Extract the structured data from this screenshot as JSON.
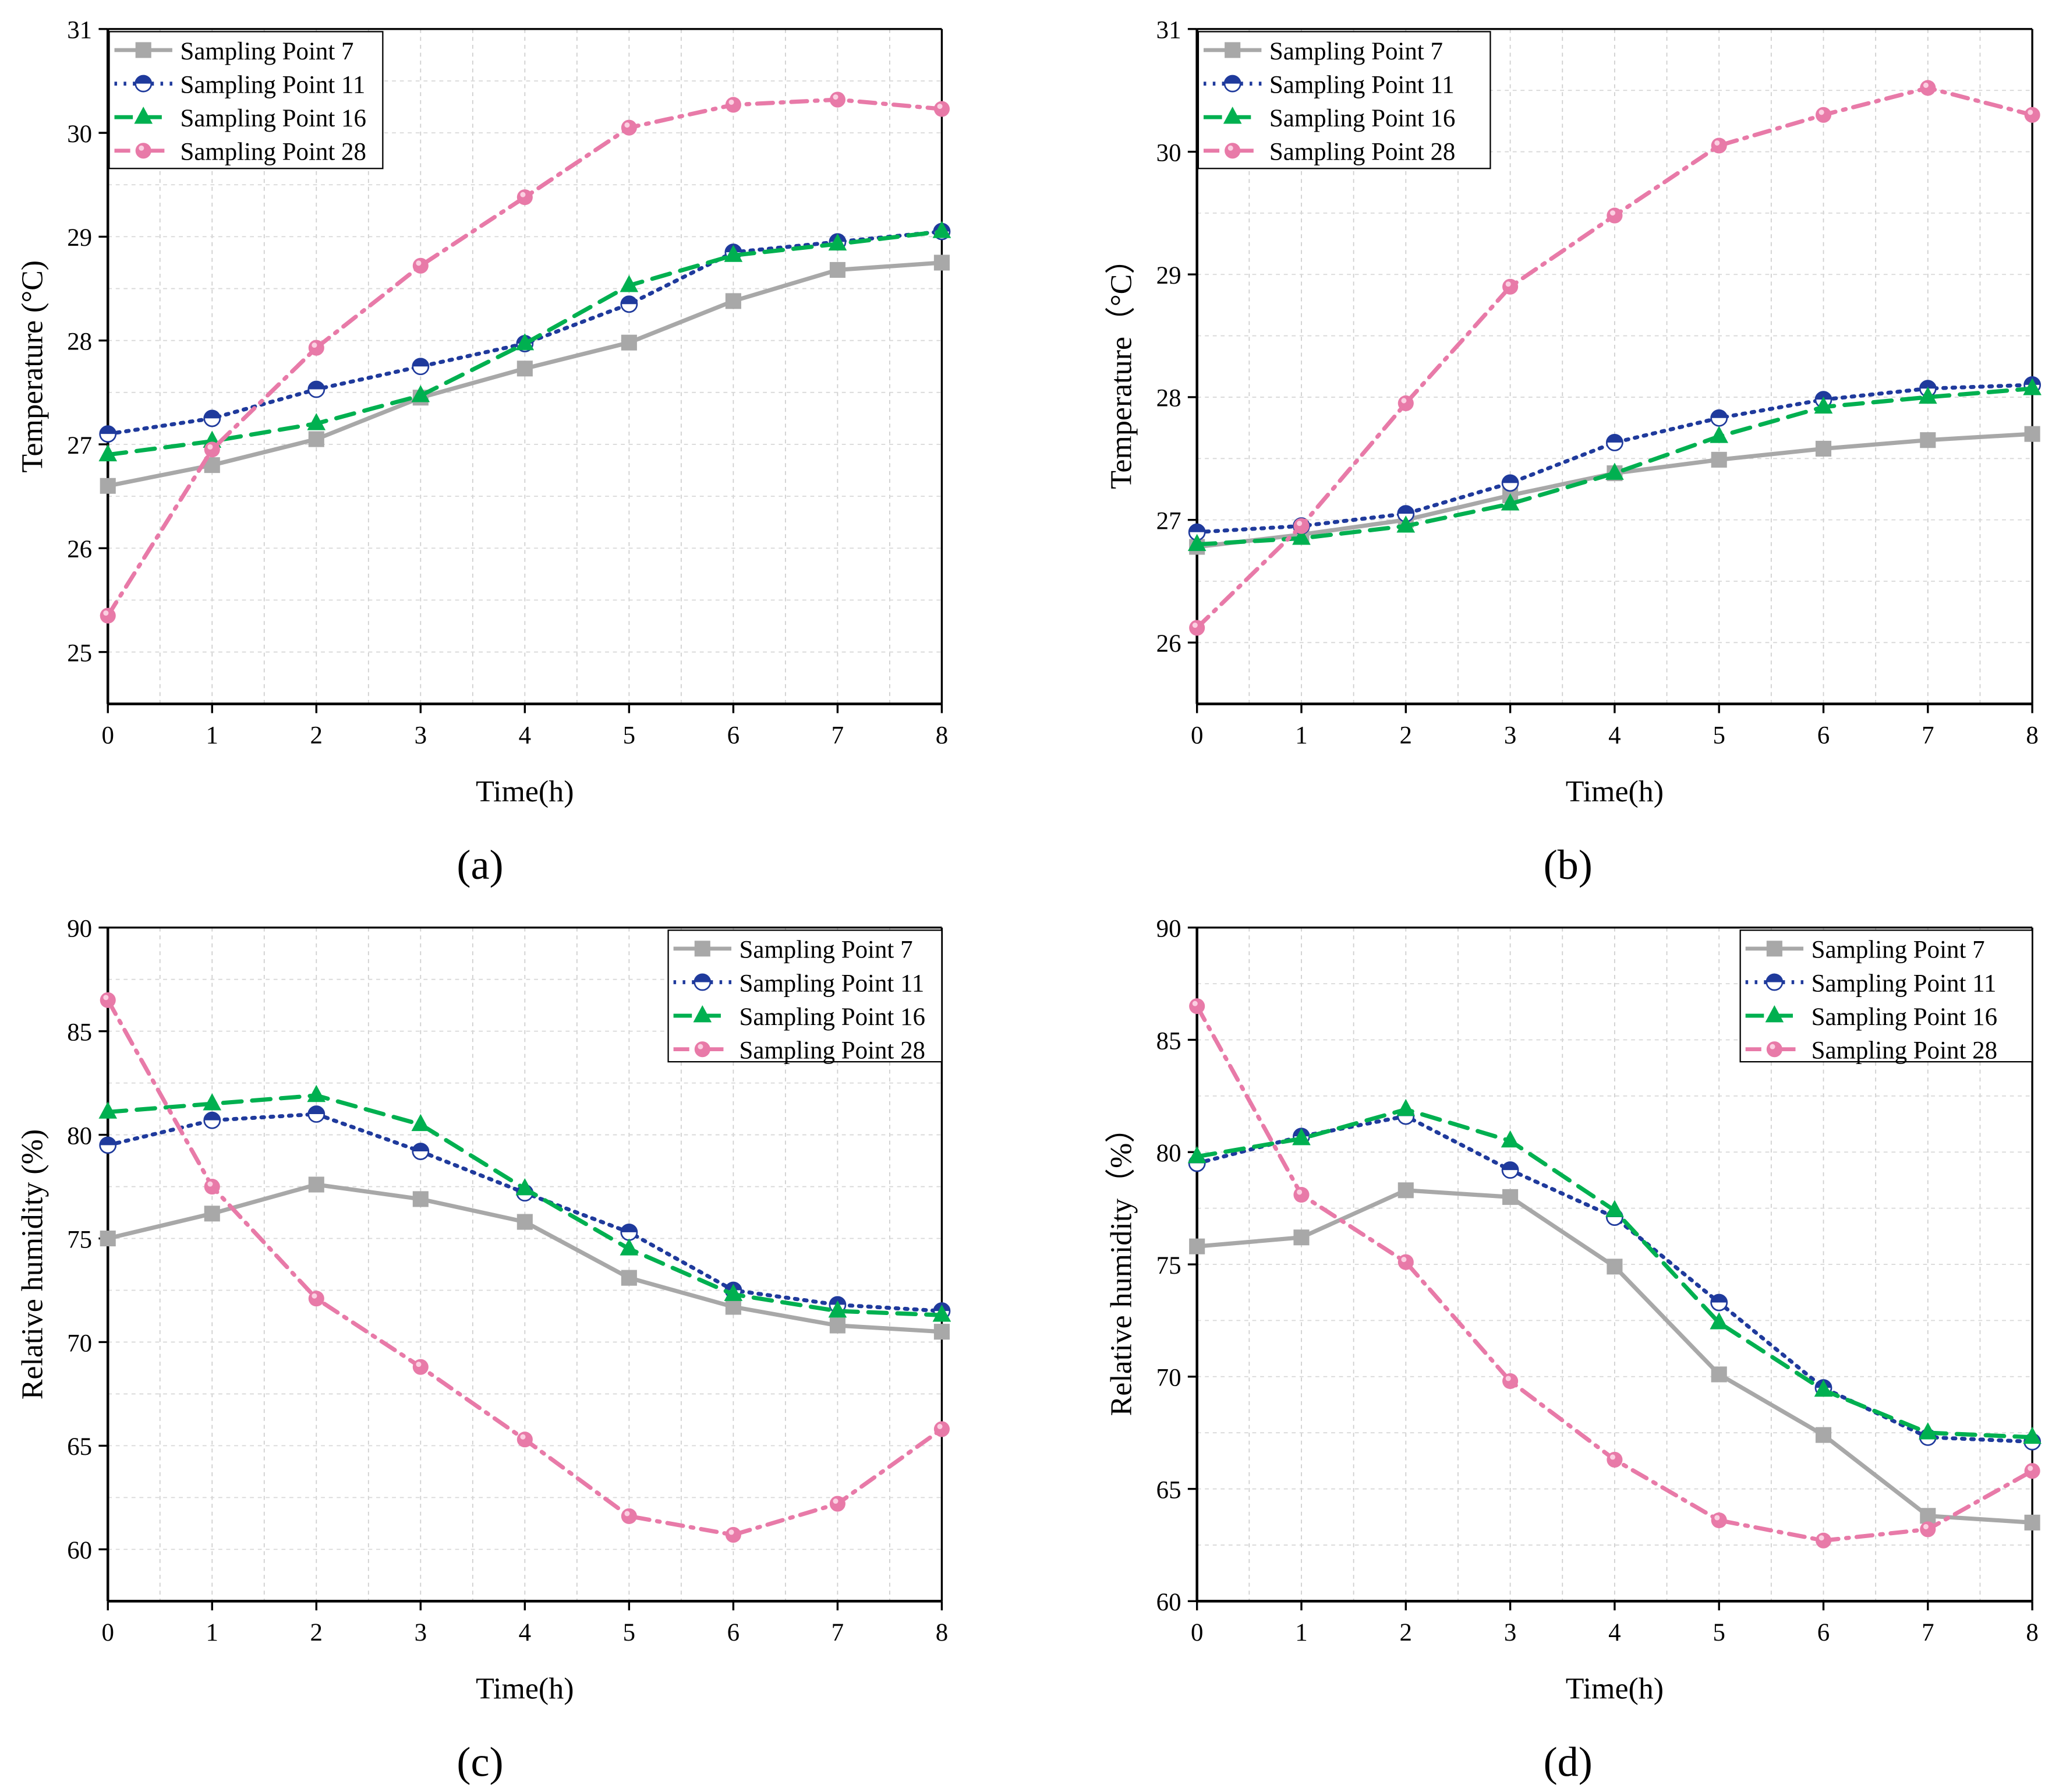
{
  "colors": {
    "sp7": "#a8a8a8",
    "sp11": "#1f3a9c",
    "sp16": "#00b050",
    "sp28": "#e87aa8"
  },
  "chart_data": [
    {
      "type": "line",
      "panel_label": "(a)",
      "xlabel": "Time(h)",
      "ylabel": "Temperature (°C)",
      "x": [
        0,
        1,
        2,
        3,
        4,
        5,
        6,
        7,
        8
      ],
      "xlim": [
        0,
        8
      ],
      "ylim": [
        24.5,
        31
      ],
      "yticks": [
        25,
        26,
        27,
        28,
        29,
        30,
        31
      ],
      "grid": true,
      "legend": "top-left",
      "series": [
        {
          "name": "Sampling Point 7",
          "values": [
            26.6,
            26.8,
            27.05,
            27.45,
            27.73,
            27.98,
            28.38,
            28.68,
            28.75
          ]
        },
        {
          "name": "Sampling Point 11",
          "values": [
            27.1,
            27.25,
            27.53,
            27.75,
            27.97,
            28.35,
            28.85,
            28.95,
            29.05
          ]
        },
        {
          "name": "Sampling Point 16",
          "values": [
            26.9,
            27.03,
            27.2,
            27.47,
            27.97,
            28.53,
            28.82,
            28.93,
            29.05
          ]
        },
        {
          "name": "Sampling Point 28",
          "values": [
            25.35,
            26.95,
            27.93,
            28.72,
            29.38,
            30.05,
            30.27,
            30.32,
            30.23
          ]
        }
      ]
    },
    {
      "type": "line",
      "panel_label": "(b)",
      "xlabel": "Time(h)",
      "ylabel": "Temperature（°C）",
      "x": [
        0,
        1,
        2,
        3,
        4,
        5,
        6,
        7,
        8
      ],
      "xlim": [
        0,
        8
      ],
      "ylim": [
        25.5,
        31
      ],
      "yticks": [
        26,
        27,
        28,
        29,
        30,
        31
      ],
      "grid": true,
      "legend": "top-left",
      "series": [
        {
          "name": "Sampling Point 7",
          "values": [
            26.78,
            26.88,
            27.0,
            27.2,
            27.38,
            27.49,
            27.58,
            27.65,
            27.7
          ]
        },
        {
          "name": "Sampling Point 11",
          "values": [
            26.9,
            26.95,
            27.05,
            27.3,
            27.63,
            27.83,
            27.98,
            28.07,
            28.1
          ]
        },
        {
          "name": "Sampling Point 16",
          "values": [
            26.8,
            26.85,
            26.95,
            27.13,
            27.38,
            27.68,
            27.92,
            28.0,
            28.07
          ]
        },
        {
          "name": "Sampling Point 28",
          "values": [
            26.12,
            26.95,
            27.95,
            28.9,
            29.48,
            30.05,
            30.3,
            30.52,
            30.3
          ]
        }
      ]
    },
    {
      "type": "line",
      "panel_label": "(c)",
      "xlabel": "Time(h)",
      "ylabel": "Relative humidity (%)",
      "x": [
        0,
        1,
        2,
        3,
        4,
        5,
        6,
        7,
        8
      ],
      "xlim": [
        0,
        8
      ],
      "ylim": [
        57.5,
        90
      ],
      "yticks": [
        60,
        65,
        70,
        75,
        80,
        85,
        90
      ],
      "grid": true,
      "legend": "top-right",
      "series": [
        {
          "name": "Sampling Point 7",
          "values": [
            75.0,
            76.2,
            77.6,
            76.9,
            75.8,
            73.1,
            71.7,
            70.8,
            70.5
          ]
        },
        {
          "name": "Sampling Point 11",
          "values": [
            79.5,
            80.7,
            81.0,
            79.2,
            77.2,
            75.3,
            72.5,
            71.8,
            71.5
          ]
        },
        {
          "name": "Sampling Point 16",
          "values": [
            81.1,
            81.5,
            81.9,
            80.5,
            77.4,
            74.5,
            72.3,
            71.5,
            71.3
          ]
        },
        {
          "name": "Sampling Point 28",
          "values": [
            86.5,
            77.5,
            72.1,
            68.8,
            65.3,
            61.6,
            60.7,
            62.2,
            65.8
          ]
        }
      ]
    },
    {
      "type": "line",
      "panel_label": "(d)",
      "xlabel": "Time(h)",
      "ylabel": "Relative humidity（%）",
      "x": [
        0,
        1,
        2,
        3,
        4,
        5,
        6,
        7,
        8
      ],
      "xlim": [
        0,
        8
      ],
      "ylim": [
        60,
        90
      ],
      "yticks": [
        60,
        65,
        70,
        75,
        80,
        85,
        90
      ],
      "grid": true,
      "legend": "top-right",
      "series": [
        {
          "name": "Sampling Point 7",
          "values": [
            75.8,
            76.2,
            78.3,
            78.0,
            74.9,
            70.1,
            67.4,
            63.8,
            63.5
          ]
        },
        {
          "name": "Sampling Point 11",
          "values": [
            79.5,
            80.7,
            81.6,
            79.2,
            77.1,
            73.3,
            69.5,
            67.3,
            67.1
          ]
        },
        {
          "name": "Sampling Point 16",
          "values": [
            79.8,
            80.6,
            81.9,
            80.5,
            77.4,
            72.4,
            69.4,
            67.5,
            67.3
          ]
        },
        {
          "name": "Sampling Point 28",
          "values": [
            86.5,
            78.1,
            75.1,
            69.8,
            66.3,
            63.6,
            62.7,
            63.2,
            65.8
          ]
        }
      ]
    }
  ]
}
